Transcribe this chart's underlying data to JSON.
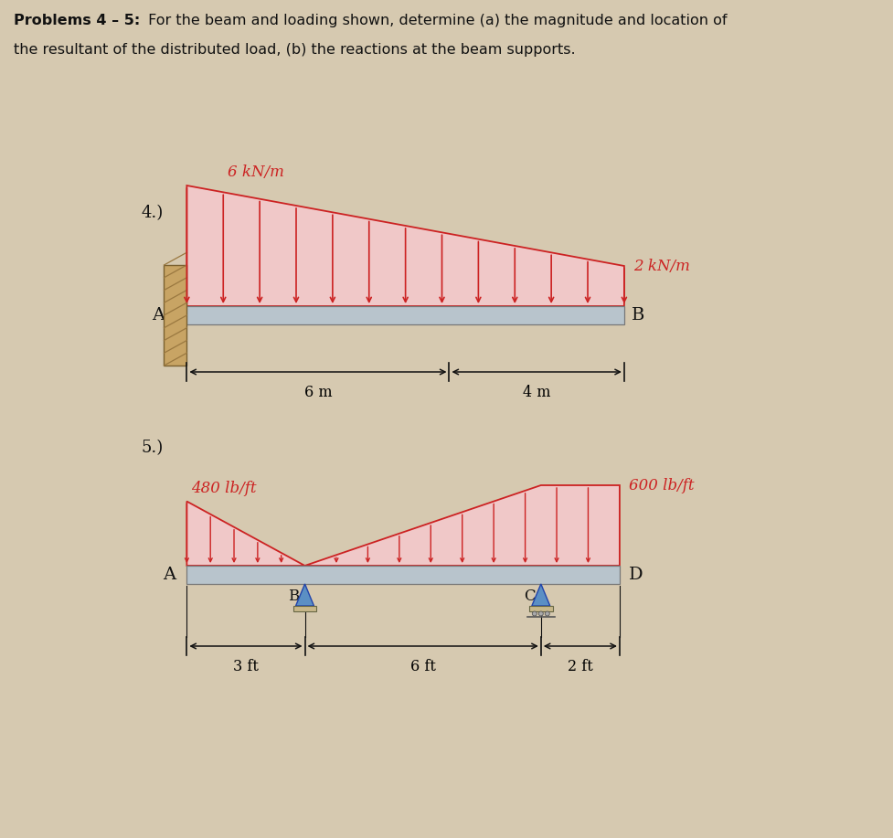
{
  "bg_color": "#d6c9b0",
  "arrow_color": "#cc2222",
  "beam_color": "#b8c4cc",
  "beam_edge_color": "#777777",
  "wall_color": "#c8a464",
  "wall_hatch_color": "#9a7840",
  "support_color": "#5b8fc4",
  "support_edge": "#2244aa",
  "dim_color": "#111111",
  "text_color": "#111111",
  "load_fill": "#f0c8c8",
  "prob4_label": "4.)",
  "prob5_label": "5.)",
  "title_bold": "Problems 4 – 5:",
  "title_rest": " For the beam and loading shown, determine (a) the magnitude and location of",
  "title_line2": "the resultant of the distributed load, (b) the reactions at the beam supports.",
  "p4_load_left": "6 kN/m",
  "p4_load_right": "2 kN/m",
  "p4_label_A": "A",
  "p4_label_B": "B",
  "p4_dim1": "6 m",
  "p4_dim2": "4 m",
  "p5_load_left": "480 lb/ft",
  "p5_load_right": "600 lb/ft",
  "p5_label_A": "A",
  "p5_label_B": "B",
  "p5_label_C": "C",
  "p5_label_D": "D",
  "p5_dim1": "3 ft",
  "p5_dim2": "6 ft",
  "p5_dim3": "2 ft"
}
